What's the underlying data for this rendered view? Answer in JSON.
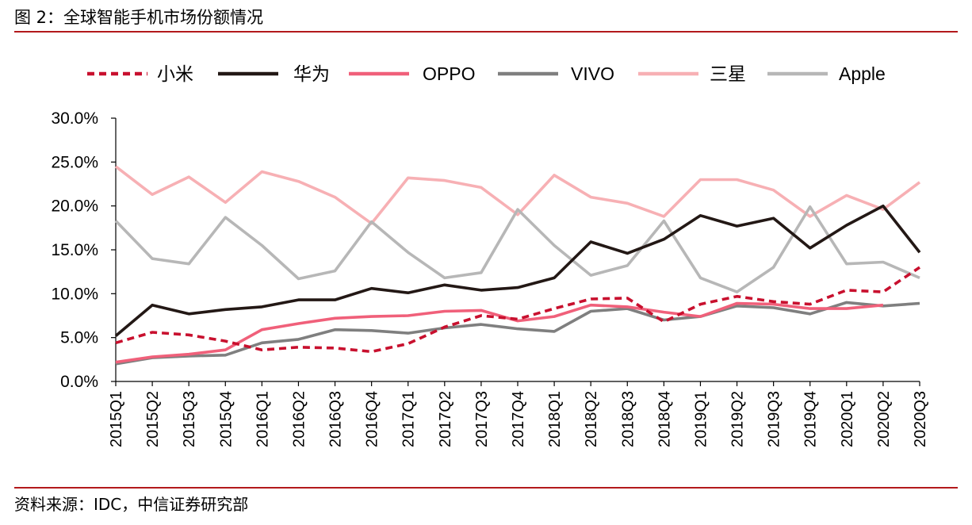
{
  "figure": {
    "title": "图 2：全球智能手机市场份额情况",
    "source": "资料来源：IDC，中信证券研究部"
  },
  "chart_data": {
    "type": "line",
    "categories": [
      "2015Q1",
      "2015Q2",
      "2015Q3",
      "2015Q4",
      "2016Q1",
      "2016Q2",
      "2016Q3",
      "2016Q4",
      "2017Q1",
      "2017Q2",
      "2017Q3",
      "2017Q4",
      "2018Q1",
      "2018Q2",
      "2018Q3",
      "2018Q4",
      "2019Q1",
      "2019Q2",
      "2019Q3",
      "2019Q4",
      "2020Q1",
      "2020Q2",
      "2020Q3"
    ],
    "ylim": [
      0,
      30
    ],
    "yticks": [
      "0.0%",
      "5.0%",
      "10.0%",
      "15.0%",
      "20.0%",
      "25.0%",
      "30.0%"
    ],
    "legend_position": "top",
    "series": [
      {
        "name": "小米",
        "color": "#c8102e",
        "dashed": true,
        "values": [
          4.4,
          5.6,
          5.3,
          4.6,
          3.6,
          3.9,
          3.8,
          3.4,
          4.3,
          6.2,
          7.5,
          7.1,
          8.3,
          9.4,
          9.5,
          6.8,
          8.8,
          9.7,
          9.1,
          8.8,
          10.4,
          10.2,
          13.0
        ]
      },
      {
        "name": "华为",
        "color": "#231815",
        "dashed": false,
        "values": [
          5.2,
          8.7,
          7.7,
          8.2,
          8.5,
          9.3,
          9.3,
          10.6,
          10.1,
          11.0,
          10.4,
          10.7,
          11.8,
          15.9,
          14.6,
          16.2,
          18.9,
          17.7,
          18.6,
          15.2,
          17.8,
          20.0,
          14.7
        ]
      },
      {
        "name": "OPPO",
        "color": "#f0607a",
        "dashed": false,
        "values": [
          2.2,
          2.8,
          3.1,
          3.6,
          5.9,
          6.6,
          7.2,
          7.4,
          7.5,
          8.0,
          8.1,
          6.9,
          7.4,
          8.7,
          8.5,
          7.9,
          7.4,
          8.9,
          8.8,
          8.3,
          8.3,
          8.7,
          null
        ]
      },
      {
        "name": "VIVO",
        "color": "#7f7f7f",
        "dashed": false,
        "values": [
          2.0,
          2.7,
          2.9,
          3.0,
          4.4,
          4.8,
          5.9,
          5.8,
          5.5,
          6.1,
          6.5,
          6.0,
          5.7,
          8.0,
          8.3,
          7.0,
          7.4,
          8.6,
          8.4,
          7.7,
          9.0,
          8.6,
          8.9
        ]
      },
      {
        "name": "三星",
        "color": "#f7b0b4",
        "dashed": false,
        "values": [
          24.5,
          21.3,
          23.3,
          20.4,
          23.9,
          22.8,
          21.0,
          18.0,
          23.2,
          22.9,
          22.1,
          19.0,
          23.5,
          21.0,
          20.3,
          18.8,
          23.0,
          23.0,
          21.8,
          18.8,
          21.2,
          19.6,
          22.7
        ]
      },
      {
        "name": "Apple",
        "color": "#b7b7b7",
        "dashed": false,
        "values": [
          18.3,
          14.0,
          13.4,
          18.7,
          15.5,
          11.7,
          12.6,
          18.2,
          14.7,
          11.8,
          12.4,
          19.6,
          15.5,
          12.1,
          13.2,
          18.3,
          11.8,
          10.2,
          13.0,
          19.9,
          13.4,
          13.6,
          11.8
        ]
      }
    ]
  }
}
